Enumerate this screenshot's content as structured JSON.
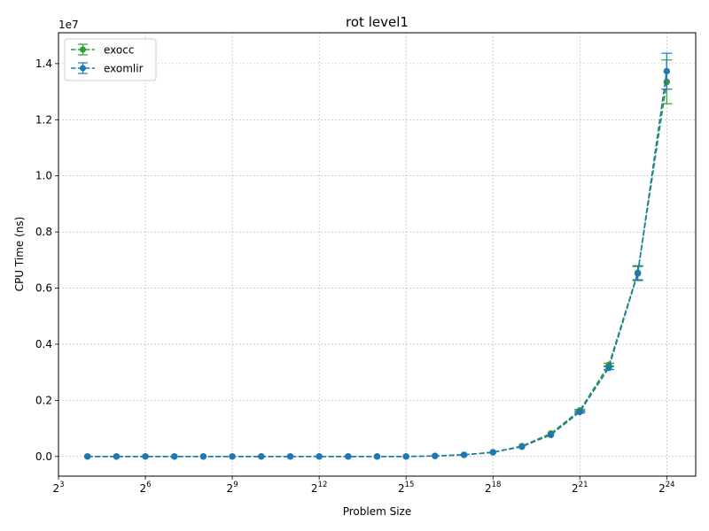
{
  "chart_data": {
    "type": "line",
    "title": "rot level1",
    "xlabel": "Problem Size",
    "ylabel": "CPU Time (ns)",
    "y_offset_label": "1e7",
    "x_scale": "log2",
    "xlim_log2": [
      3,
      25
    ],
    "ylim": [
      -700000,
      15100000
    ],
    "grid": true,
    "legend_position": "top-left",
    "x_ticks": [
      {
        "exp": 3,
        "base": "2",
        "sup": "3"
      },
      {
        "exp": 6,
        "base": "2",
        "sup": "6"
      },
      {
        "exp": 9,
        "base": "2",
        "sup": "9"
      },
      {
        "exp": 12,
        "base": "2",
        "sup": "12"
      },
      {
        "exp": 15,
        "base": "2",
        "sup": "15"
      },
      {
        "exp": 18,
        "base": "2",
        "sup": "18"
      },
      {
        "exp": 21,
        "base": "2",
        "sup": "21"
      },
      {
        "exp": 24,
        "base": "2",
        "sup": "24"
      }
    ],
    "y_ticks": [
      {
        "value": 0,
        "label": "0.0"
      },
      {
        "value": 2000000,
        "label": "0.2"
      },
      {
        "value": 4000000,
        "label": "0.4"
      },
      {
        "value": 6000000,
        "label": "0.6"
      },
      {
        "value": 8000000,
        "label": "0.8"
      },
      {
        "value": 10000000,
        "label": "1.0"
      },
      {
        "value": 12000000,
        "label": "1.2"
      },
      {
        "value": 14000000,
        "label": "1.4"
      }
    ],
    "x": [
      16,
      32,
      64,
      128,
      256,
      512,
      1024,
      2048,
      4096,
      8192,
      16384,
      32768,
      65536,
      131072,
      262144,
      524288,
      1048576,
      2097152,
      4194304,
      8388608,
      16777216
    ],
    "series": [
      {
        "name": "exocc",
        "color": "#2ca02c",
        "values": [
          0,
          0,
          0,
          0,
          0,
          0,
          0,
          0,
          0,
          0,
          0,
          0,
          20000,
          60000,
          150000,
          370000,
          820000,
          1640000,
          3260000,
          6550000,
          13350000
        ],
        "errors": [
          0,
          0,
          0,
          0,
          0,
          0,
          0,
          0,
          0,
          0,
          0,
          0,
          0,
          0,
          0,
          0,
          0,
          40000,
          60000,
          250000,
          780000
        ]
      },
      {
        "name": "exomlir",
        "color": "#1f77b4",
        "values": [
          0,
          0,
          0,
          0,
          0,
          0,
          0,
          0,
          0,
          0,
          0,
          0,
          20000,
          60000,
          150000,
          350000,
          770000,
          1590000,
          3160000,
          6520000,
          13730000
        ],
        "errors": [
          0,
          0,
          0,
          0,
          0,
          0,
          0,
          0,
          0,
          0,
          0,
          0,
          0,
          0,
          0,
          0,
          0,
          40000,
          60000,
          250000,
          640000
        ]
      }
    ]
  }
}
